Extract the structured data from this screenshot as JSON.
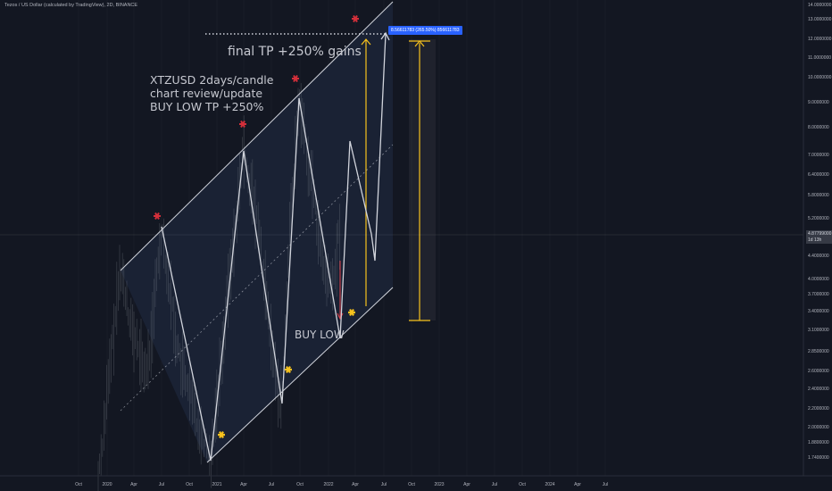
{
  "header": {
    "title": "Tezos / US Dollar (calculated by TradingView), 2D, BINANCE"
  },
  "annotations": {
    "main_lines": [
      "XTZUSD 2days/candle",
      "chart review/update",
      "BUY LOW TP +250%"
    ],
    "final_tp": "final TP +250% gains",
    "buy_low": "BUY LOW",
    "tp_badge": "8.56611783 (265.50%) 856611783"
  },
  "price_badge": {
    "price": "4.87799000",
    "timer": "1d 13h"
  },
  "colors": {
    "background": "#131722",
    "channel_fill": "#1a2234",
    "line": "#d1d4dc",
    "target_arrow": "#f7c21d",
    "red_star": "#d32f3a",
    "yellow_star": "#f7c21d",
    "red_arrow": "#e0404a",
    "tp_badge": "#2962ff"
  },
  "chart_data": {
    "type": "line",
    "symbol": "XTZUSD",
    "timeframe": "2D",
    "x_axis_labels": [
      "Oct",
      "2020",
      "Apr",
      "Jul",
      "Oct",
      "2021",
      "Apr",
      "Jul",
      "Oct",
      "2022",
      "Apr",
      "Jul",
      "Oct",
      "2023",
      "Apr",
      "Jul",
      "Oct",
      "2024",
      "Apr",
      "Jul"
    ],
    "y_axis_labels": [
      "14.0000000",
      "13.0000000",
      "12.0000000",
      "11.0000000",
      "10.0000000",
      "9.0000000",
      "8.0000000",
      "7.0000000",
      "6.4000000",
      "5.8000000",
      "5.2000000",
      "4.8000000",
      "4.4000000",
      "4.0000000",
      "3.7000000",
      "3.4000000",
      "3.1000000",
      "2.8500000",
      "2.6000000",
      "2.4000000",
      "2.2000000",
      "2.0000000",
      "1.8800000",
      "1.7400000"
    ],
    "y_scale": "log",
    "zigzag": [
      {
        "date": "2020-07",
        "price": 4.9
      },
      {
        "date": "2021-01",
        "price": 1.7
      },
      {
        "date": "2021-04",
        "price": 7.4
      },
      {
        "date": "2021-07",
        "price": 2.25
      },
      {
        "date": "2021-10",
        "price": 9.0
      },
      {
        "date": "2022-01",
        "price": 3.0
      },
      {
        "date": "2022-03",
        "price": 7.5
      },
      {
        "date": "2022-05",
        "price": 4.4
      },
      {
        "date": "2022-07",
        "price": 12.5
      }
    ],
    "channel_upper": [
      {
        "date": "2019-12",
        "price": 4.3
      },
      {
        "date": "2022-07",
        "price": 14.0
      }
    ],
    "channel_lower": [
      {
        "date": "2020-12",
        "price": 1.7
      },
      {
        "date": "2022-07",
        "price": 3.6
      }
    ],
    "target_level": 12.5,
    "measure_range": [
      3.35,
      12.0
    ],
    "current_price": 4.878
  }
}
